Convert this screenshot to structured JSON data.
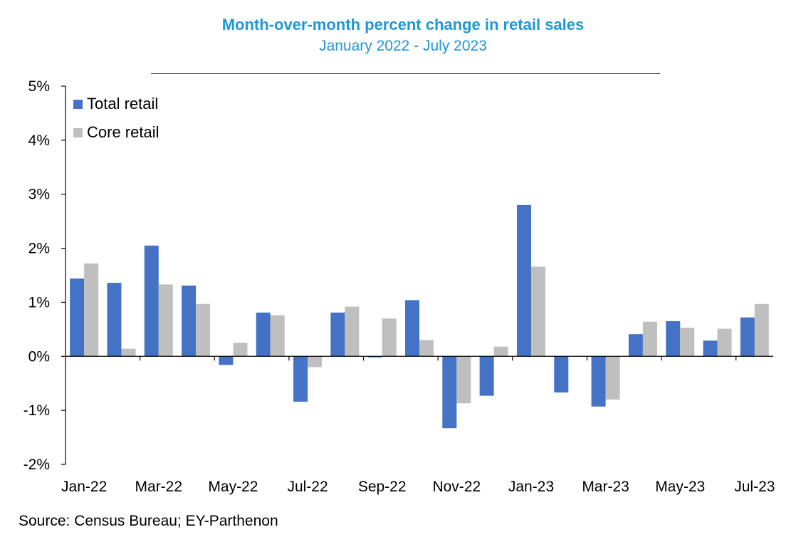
{
  "title": "Month-over-month percent change in retail sales",
  "subtitle": "January 2022 - July 2023",
  "source": "Source: Census Bureau; EY-Parthenon",
  "colors": {
    "title": "#1f97d6",
    "total": "#4472c4",
    "core": "#bfbfbf"
  },
  "legend": {
    "total_label": "Total retail",
    "core_label": "Core retail"
  },
  "chart_data": {
    "type": "bar",
    "title": "Month-over-month percent change in retail sales",
    "subtitle": "January 2022 - July 2023",
    "categories": [
      "Jan-22",
      "Feb-22",
      "Mar-22",
      "Apr-22",
      "May-22",
      "Jun-22",
      "Jul-22",
      "Aug-22",
      "Sep-22",
      "Oct-22",
      "Nov-22",
      "Dec-22",
      "Jan-23",
      "Feb-23",
      "Mar-23",
      "Apr-23",
      "May-23",
      "Jun-23",
      "Jul-23"
    ],
    "tick_labels": [
      "Jan-22",
      "Mar-22",
      "May-22",
      "Jul-22",
      "Sep-22",
      "Nov-22",
      "Jan-23",
      "Mar-23",
      "May-23",
      "Jul-23"
    ],
    "series": [
      {
        "name": "Total retail",
        "values": [
          1.44,
          1.36,
          2.05,
          1.31,
          -0.16,
          0.81,
          -0.84,
          0.81,
          -0.02,
          1.04,
          -1.33,
          -0.73,
          2.8,
          -0.67,
          -0.93,
          0.41,
          0.65,
          0.29,
          0.72
        ]
      },
      {
        "name": "Core retail",
        "values": [
          1.72,
          0.14,
          1.33,
          0.97,
          0.25,
          0.76,
          -0.2,
          0.92,
          0.7,
          0.3,
          -0.87,
          0.18,
          1.66,
          0.0,
          -0.8,
          0.64,
          0.53,
          0.51,
          0.97
        ]
      }
    ],
    "yticks": [
      "5%",
      "4%",
      "3%",
      "2%",
      "1%",
      "0%",
      "-1%",
      "-2%"
    ],
    "ylim": [
      -2,
      5
    ],
    "xlabel": "",
    "ylabel": "",
    "legend_position": "top-left",
    "grid": false
  }
}
